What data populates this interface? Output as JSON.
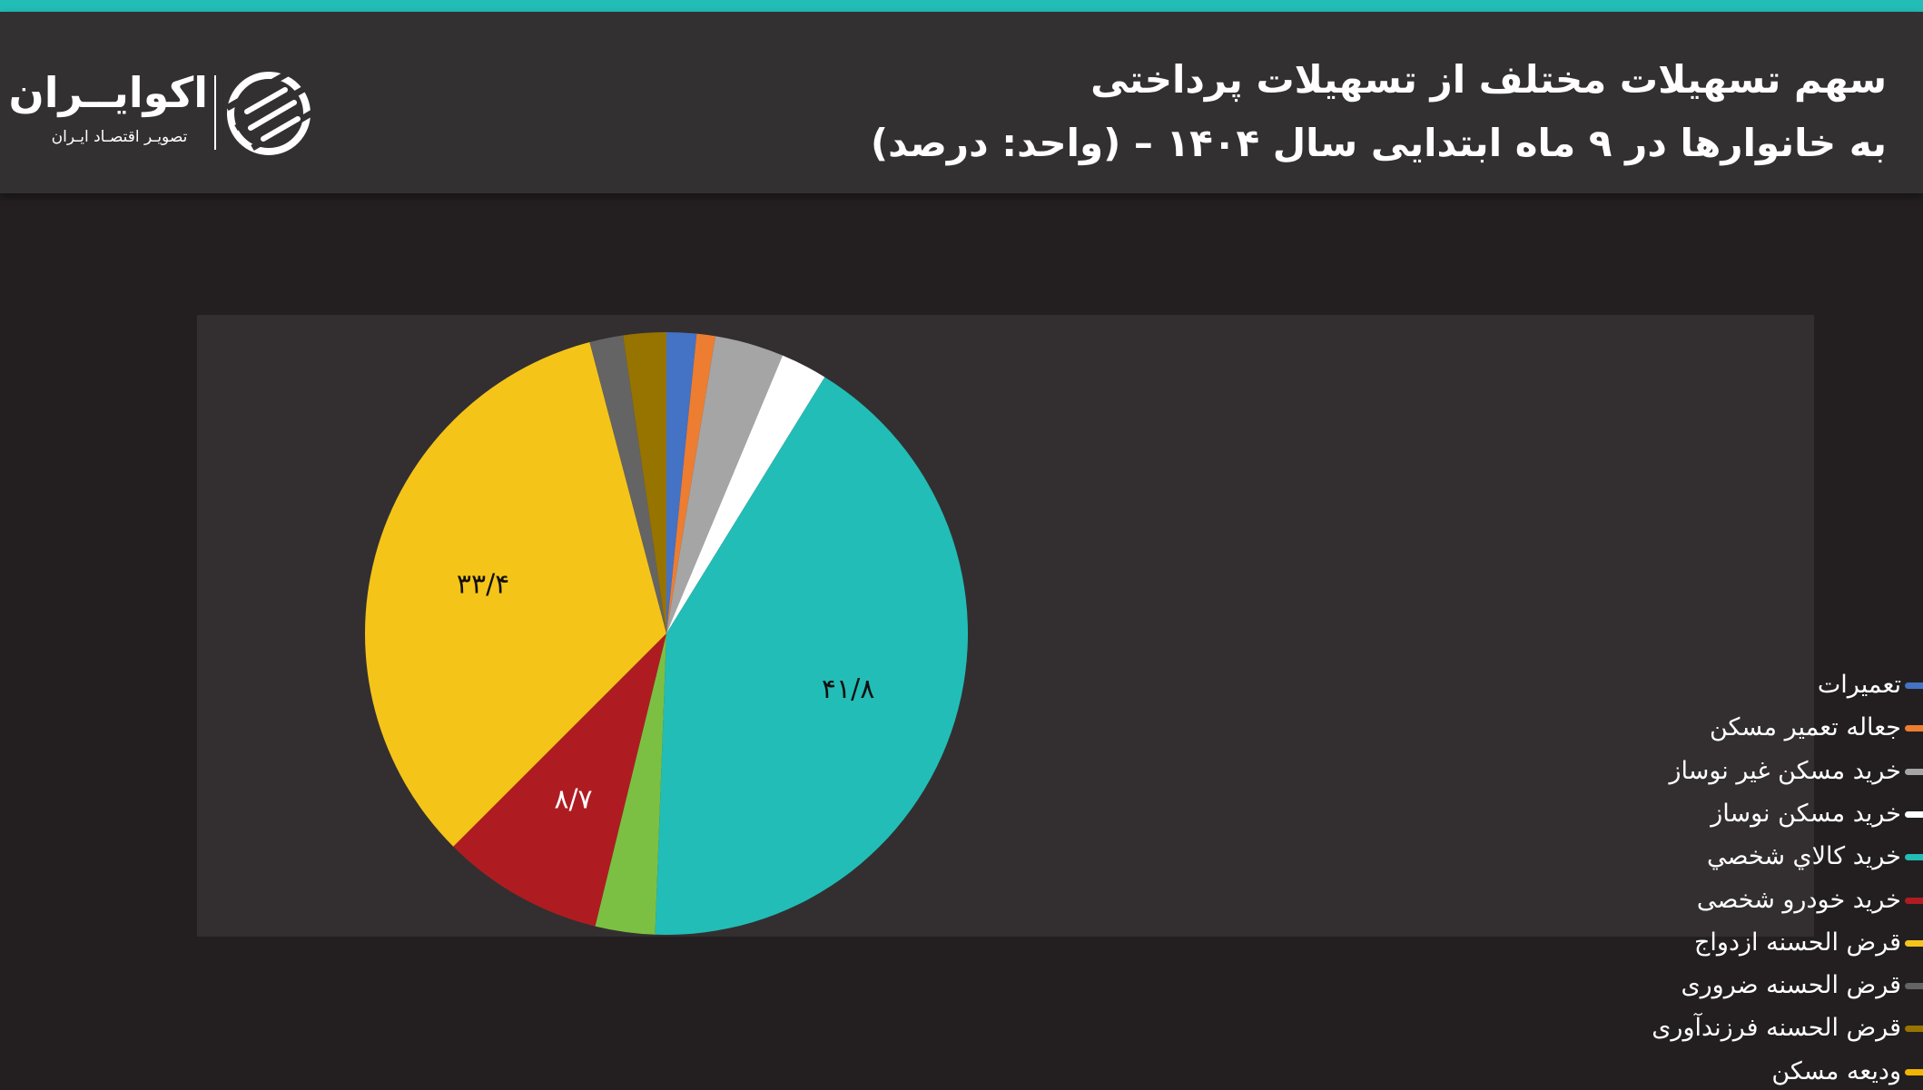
{
  "header": {
    "title_line1": "سهم تسهیلات مختلف از تسهیلات پرداختی",
    "title_line2": "به خانوارها در ۹ ماه ابتدایی سال ۱۴۰۴ – (واحد: درصد)",
    "accent_color": "#22bdb6"
  },
  "logo": {
    "name": "اکوایــران",
    "tagline": "تصویـر اقتصـاد ایـران"
  },
  "chart_data": {
    "type": "pie",
    "start": "top",
    "direction": "clockwise",
    "legend_position": "right",
    "series": [
      {
        "name": "تعمیرات",
        "value": 1.6,
        "color": "#4472c4",
        "label": ""
      },
      {
        "name": "جعاله تعمیر مسکن",
        "value": 1.0,
        "color": "#ed7d31",
        "label": ""
      },
      {
        "name": "خرید مسکن غیر نوساز",
        "value": 3.7,
        "color": "#a5a5a5",
        "label": ""
      },
      {
        "name": "خرید مسکن نوساز",
        "value": 2.5,
        "color": "#ffffff",
        "label": ""
      },
      {
        "name": "خرید کالاي شخصي",
        "value": 41.8,
        "color": "#22bdb6",
        "label": "۴۱/۸",
        "label_color": "#111111"
      },
      {
        "name": "",
        "value": 3.2,
        "color": "#7bc043",
        "label": ""
      },
      {
        "name": "خرید خودرو شخصی",
        "value": 8.7,
        "color": "#ae1c22",
        "label": "۸/۷",
        "label_color": "#ffffff"
      },
      {
        "name": "قرض الحسنه ازدواج",
        "value": 33.4,
        "color": "#f4c419",
        "label": "۳۳/۴",
        "label_color": "#111111"
      },
      {
        "name": "قرض الحسنه ضروری",
        "value": 1.8,
        "color": "#646464",
        "label": ""
      },
      {
        "name": "قرض الحسنه فرزندآوری",
        "value": 2.3,
        "color": "#977300",
        "label": ""
      }
    ],
    "legend": [
      {
        "name": "تعمیرات",
        "color": "#4472c4"
      },
      {
        "name": "جعاله تعمیر مسکن",
        "color": "#ed7d31"
      },
      {
        "name": "خرید مسکن غیر نوساز",
        "color": "#a5a5a5"
      },
      {
        "name": "خرید مسکن نوساز",
        "color": "#ffffff"
      },
      {
        "name": "خرید کالاي شخصي",
        "color": "#22bdb6"
      },
      {
        "name": "خرید خودرو شخصی",
        "color": "#ae1c22"
      },
      {
        "name": "قرض الحسنه ازدواج",
        "color": "#f4c419"
      },
      {
        "name": "قرض الحسنه ضروری",
        "color": "#646464"
      },
      {
        "name": "قرض الحسنه فرزندآوری",
        "color": "#977300"
      },
      {
        "name": "ودیعه مسکن",
        "color": "#f2b400"
      }
    ]
  }
}
